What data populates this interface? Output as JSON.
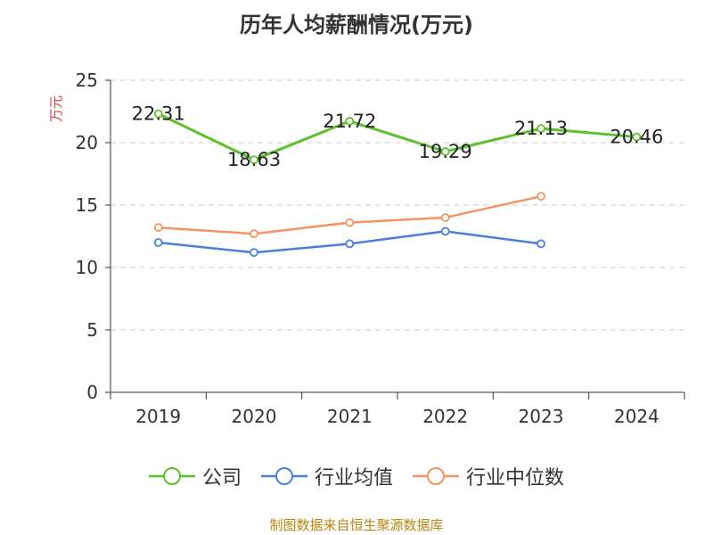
{
  "chart_data": {
    "type": "line",
    "title": "历年人均薪酬情况(万元)",
    "ylabel": "万元",
    "categories": [
      "2019",
      "2020",
      "2021",
      "2022",
      "2023",
      "2024"
    ],
    "ylim": [
      0,
      25
    ],
    "yticks": [
      0,
      5,
      10,
      15,
      20,
      25
    ],
    "grid": true,
    "legend_position": "bottom",
    "series": [
      {
        "name": "公司",
        "color": "#5cc12a",
        "values": [
          22.31,
          18.63,
          21.72,
          19.29,
          21.13,
          20.46
        ],
        "labels": [
          "22.31",
          "18.63",
          "21.72",
          "19.29",
          "21.13",
          "20.46"
        ]
      },
      {
        "name": "行业均值",
        "color": "#4a7fd8",
        "values": [
          12.0,
          11.2,
          11.9,
          12.9,
          11.9,
          null
        ]
      },
      {
        "name": "行业中位数",
        "color": "#f29562",
        "values": [
          13.2,
          12.7,
          13.6,
          14.0,
          15.7,
          null
        ]
      }
    ]
  },
  "source_note": "制图数据来自恒生聚源数据库"
}
